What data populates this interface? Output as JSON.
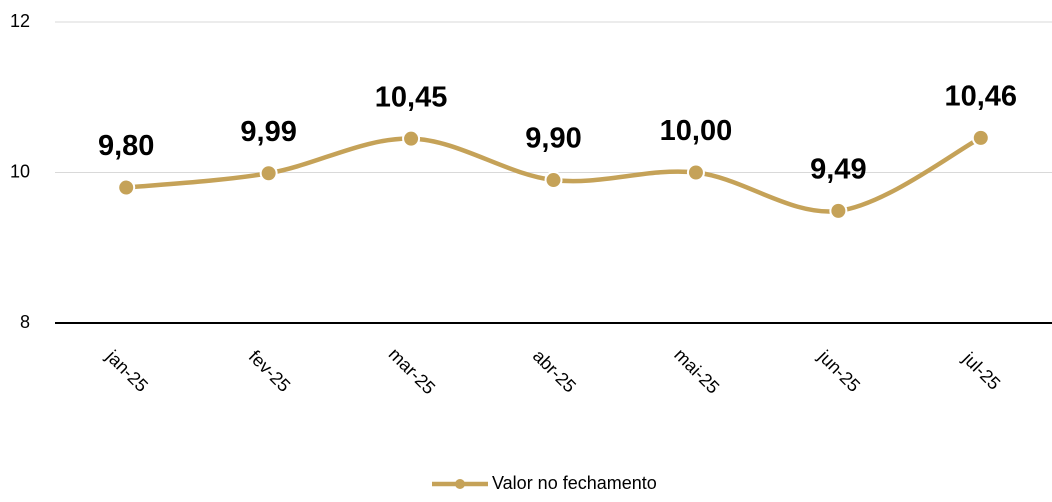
{
  "chart_data": {
    "type": "line",
    "smooth": true,
    "categories": [
      "jan-25",
      "fev-25",
      "mar-25",
      "abr-25",
      "mai-25",
      "jun-25",
      "jul-25"
    ],
    "series": [
      {
        "name": "Valor no fechamento",
        "color": "#c5a258",
        "values": [
          9.8,
          9.99,
          10.45,
          9.9,
          10.0,
          9.49,
          10.46
        ],
        "value_labels": [
          "9,80",
          "9,99",
          "10,45",
          "9,90",
          "10,00",
          "9,49",
          "10,46"
        ]
      }
    ],
    "ylim": [
      8,
      12
    ],
    "yticks": [
      8,
      10,
      12
    ],
    "grid": true,
    "legend": "bottom"
  }
}
